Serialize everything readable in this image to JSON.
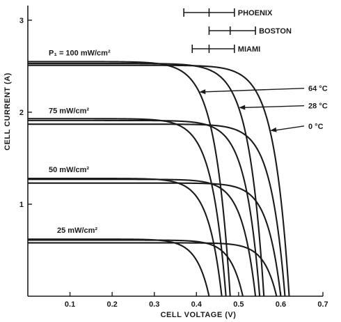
{
  "chart_data": {
    "type": "line",
    "title": "",
    "xlabel": "CELL VOLTAGE (V)",
    "ylabel": "CELL CURRENT (A)",
    "xlim": [
      0,
      0.7
    ],
    "ylim": [
      0,
      3.1
    ],
    "x_ticks": [
      {
        "value": 0.1,
        "label": "0.1"
      },
      {
        "value": 0.2,
        "label": "0.2"
      },
      {
        "value": 0.3,
        "label": "0.3"
      },
      {
        "value": 0.4,
        "label": "0.4"
      },
      {
        "value": 0.5,
        "label": "0.5"
      },
      {
        "value": 0.6,
        "label": "0.6"
      },
      {
        "value": 0.7,
        "label": "0.7"
      }
    ],
    "y_ticks": [
      {
        "value": 1,
        "label": "1"
      },
      {
        "value": 2,
        "label": "2"
      },
      {
        "value": 3,
        "label": "3"
      }
    ],
    "grid": false,
    "irradiance_labels": [
      {
        "label": "P₁ = 100 mW/cm²",
        "isc": 2.55
      },
      {
        "label": "75 mW/cm²",
        "isc": 1.92
      },
      {
        "label": "50 mW/cm²",
        "isc": 1.28
      },
      {
        "label": "25 mW/cm²",
        "isc": 0.62
      }
    ],
    "temperature_labels": [
      {
        "label": "64 °C",
        "points_to_voc": 0.48
      },
      {
        "label": "28 °C",
        "points_to_voc": 0.56
      },
      {
        "label": "0 °C",
        "points_to_voc": 0.62
      }
    ],
    "voc_ranges": [
      {
        "label": "PHOENIX",
        "min": 0.37,
        "mid": 0.43,
        "max": 0.49
      },
      {
        "label": "BOSTON",
        "min": 0.43,
        "mid": 0.48,
        "max": 0.54
      },
      {
        "label": "MIAMI",
        "min": 0.39,
        "mid": 0.43,
        "max": 0.49
      }
    ],
    "series": [
      {
        "name": "100 mW/cm², 64 °C",
        "isc": 2.55,
        "voc": 0.48,
        "knee": 0.036
      },
      {
        "name": "100 mW/cm², 28 °C",
        "isc": 2.53,
        "voc": 0.56,
        "knee": 0.036
      },
      {
        "name": "100 mW/cm², 0 °C",
        "isc": 2.51,
        "voc": 0.62,
        "knee": 0.036
      },
      {
        "name": "75 mW/cm², 64 °C",
        "isc": 1.93,
        "voc": 0.47,
        "knee": 0.034
      },
      {
        "name": "75 mW/cm², 28 °C",
        "isc": 1.91,
        "voc": 0.55,
        "knee": 0.034
      },
      {
        "name": "75 mW/cm², 0 °C",
        "isc": 1.87,
        "voc": 0.61,
        "knee": 0.034
      },
      {
        "name": "50 mW/cm², 64 °C",
        "isc": 1.28,
        "voc": 0.46,
        "knee": 0.032
      },
      {
        "name": "50 mW/cm², 28 °C",
        "isc": 1.27,
        "voc": 0.54,
        "knee": 0.032
      },
      {
        "name": "50 mW/cm², 0 °C",
        "isc": 1.23,
        "voc": 0.6,
        "knee": 0.032
      },
      {
        "name": "25 mW/cm², 64 °C",
        "isc": 0.62,
        "voc": 0.43,
        "knee": 0.03
      },
      {
        "name": "25 mW/cm², 28 °C",
        "isc": 0.61,
        "voc": 0.51,
        "knee": 0.03
      },
      {
        "name": "25 mW/cm², 0 °C",
        "isc": 0.58,
        "voc": 0.59,
        "knee": 0.03
      }
    ]
  }
}
